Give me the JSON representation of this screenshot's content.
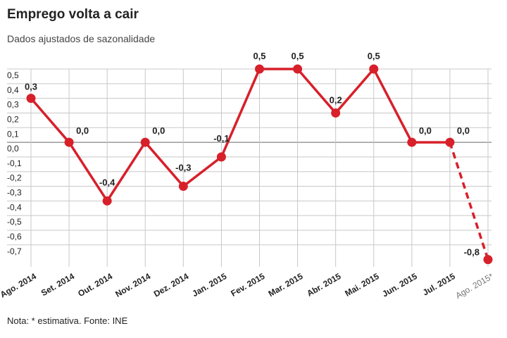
{
  "chart_data": {
    "type": "line",
    "title": "Emprego volta a cair",
    "subtitle": "Dados ajustados de sazonalidade",
    "note": "Nota: * estimativa. Fonte: INE",
    "categories": [
      "Ago. 2014",
      "Set. 2014",
      "Out. 2014",
      "Nov. 2014",
      "Dez. 2014",
      "Jan. 2015",
      "Fev. 2015",
      "Mar. 2015",
      "Abr. 2015",
      "Mai. 2015",
      "Jun. 2015",
      "Jul. 2015",
      "Ago. 2015*"
    ],
    "values": [
      0.3,
      0.0,
      -0.4,
      0.0,
      -0.3,
      -0.1,
      0.5,
      0.5,
      0.2,
      0.5,
      0.0,
      0.0,
      -0.8
    ],
    "value_labels": [
      "0,3",
      "0,0",
      "-0,4",
      "0,0",
      "-0,3",
      "-0,1",
      "0,5",
      "0,5",
      "0,2",
      "0,5",
      "0,0",
      "0,0",
      "-0,8"
    ],
    "color": "#d7202a",
    "last_segment": "dashed",
    "ylim": [
      -0.85,
      0.5
    ],
    "yticks": [
      {
        "value": 0.5,
        "label": "0,5"
      },
      {
        "value": 0.4,
        "label": "0,4"
      },
      {
        "value": 0.3,
        "label": "0,3"
      },
      {
        "value": 0.2,
        "label": "0,2"
      },
      {
        "value": 0.1,
        "label": "0,1"
      },
      {
        "value": 0,
        "label": "0,0"
      },
      {
        "value": -0.1,
        "label": "-0,1"
      },
      {
        "value": -0.2,
        "label": "-0,2"
      },
      {
        "value": -0.3,
        "label": "-0,3"
      },
      {
        "value": -0.4,
        "label": "-0,4"
      },
      {
        "value": -0.5,
        "label": "-0,5"
      },
      {
        "value": -0.6,
        "label": "-0,6"
      },
      {
        "value": -0.7,
        "label": "-0,7"
      }
    ],
    "grid": true
  }
}
